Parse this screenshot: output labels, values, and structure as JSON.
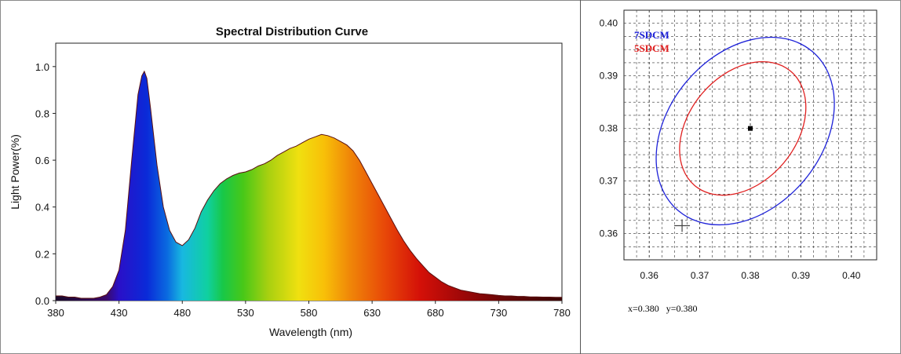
{
  "chart_data": [
    {
      "type": "area",
      "title": "Spectral Distribution Curve",
      "xlabel": "Wavelength  (nm)",
      "ylabel": "Light Power(%)",
      "xlim": [
        380,
        780
      ],
      "ylim": [
        0,
        1.1
      ],
      "xticks": [
        "380",
        "430",
        "480",
        "530",
        "580",
        "630",
        "680",
        "730",
        "780"
      ],
      "yticks": [
        "0.0",
        "0.2",
        "0.4",
        "0.6",
        "0.8",
        "1.0"
      ],
      "grid": false,
      "fill": "visible-spectrum gradient",
      "series": [
        {
          "x": [
            380,
            385,
            390,
            395,
            400,
            405,
            410,
            415,
            420,
            425,
            430,
            435,
            440,
            445,
            448,
            450,
            452,
            455,
            460,
            465,
            470,
            475,
            480,
            485,
            490,
            495,
            500,
            505,
            510,
            515,
            520,
            525,
            530,
            535,
            540,
            545,
            550,
            555,
            560,
            565,
            570,
            575,
            580,
            585,
            590,
            595,
            600,
            605,
            610,
            615,
            620,
            625,
            630,
            635,
            640,
            645,
            650,
            655,
            660,
            665,
            670,
            675,
            680,
            685,
            690,
            695,
            700,
            705,
            710,
            715,
            720,
            725,
            730,
            735,
            740,
            745,
            750,
            755,
            760,
            765,
            770,
            775,
            780
          ],
          "y": [
            0.02,
            0.02,
            0.015,
            0.015,
            0.01,
            0.01,
            0.01,
            0.015,
            0.025,
            0.06,
            0.13,
            0.3,
            0.6,
            0.88,
            0.96,
            0.98,
            0.95,
            0.82,
            0.58,
            0.4,
            0.3,
            0.25,
            0.235,
            0.26,
            0.31,
            0.38,
            0.43,
            0.47,
            0.5,
            0.52,
            0.535,
            0.545,
            0.55,
            0.56,
            0.575,
            0.585,
            0.6,
            0.62,
            0.635,
            0.65,
            0.66,
            0.675,
            0.69,
            0.7,
            0.71,
            0.705,
            0.695,
            0.68,
            0.665,
            0.64,
            0.6,
            0.55,
            0.5,
            0.45,
            0.4,
            0.35,
            0.3,
            0.255,
            0.215,
            0.18,
            0.15,
            0.12,
            0.1,
            0.08,
            0.065,
            0.055,
            0.045,
            0.04,
            0.035,
            0.03,
            0.028,
            0.025,
            0.022,
            0.02,
            0.02,
            0.018,
            0.018,
            0.016,
            0.016,
            0.015,
            0.015,
            0.014,
            0.014
          ]
        }
      ]
    },
    {
      "type": "scatter",
      "title": "",
      "xlabel": "",
      "ylabel": "",
      "xlim": [
        0.355,
        0.405
      ],
      "ylim": [
        0.355,
        0.4025
      ],
      "xticks": [
        "0.36",
        "0.37",
        "0.38",
        "0.39",
        "0.40"
      ],
      "yticks": [
        "0.36",
        "0.37",
        "0.38",
        "0.39",
        "0.40"
      ],
      "grid": true,
      "legend_placement": "top-left",
      "point": {
        "x": 0.38,
        "y": 0.38
      },
      "cross_marker": {
        "x": 0.3665,
        "y": 0.3615
      },
      "series": [
        {
          "name": "7SDCM",
          "color": "#1e22d8",
          "shape": "ellipse",
          "center": [
            0.379,
            0.3795
          ],
          "rx": 0.0152,
          "ry": 0.0198,
          "rotation_deg": 40
        },
        {
          "name": "5SDCM",
          "color": "#e02020",
          "shape": "ellipse",
          "center": [
            0.3785,
            0.38
          ],
          "rx": 0.0106,
          "ry": 0.0142,
          "rotation_deg": 40
        }
      ]
    }
  ],
  "readout": {
    "text": "x=0.380   y=0.380"
  }
}
